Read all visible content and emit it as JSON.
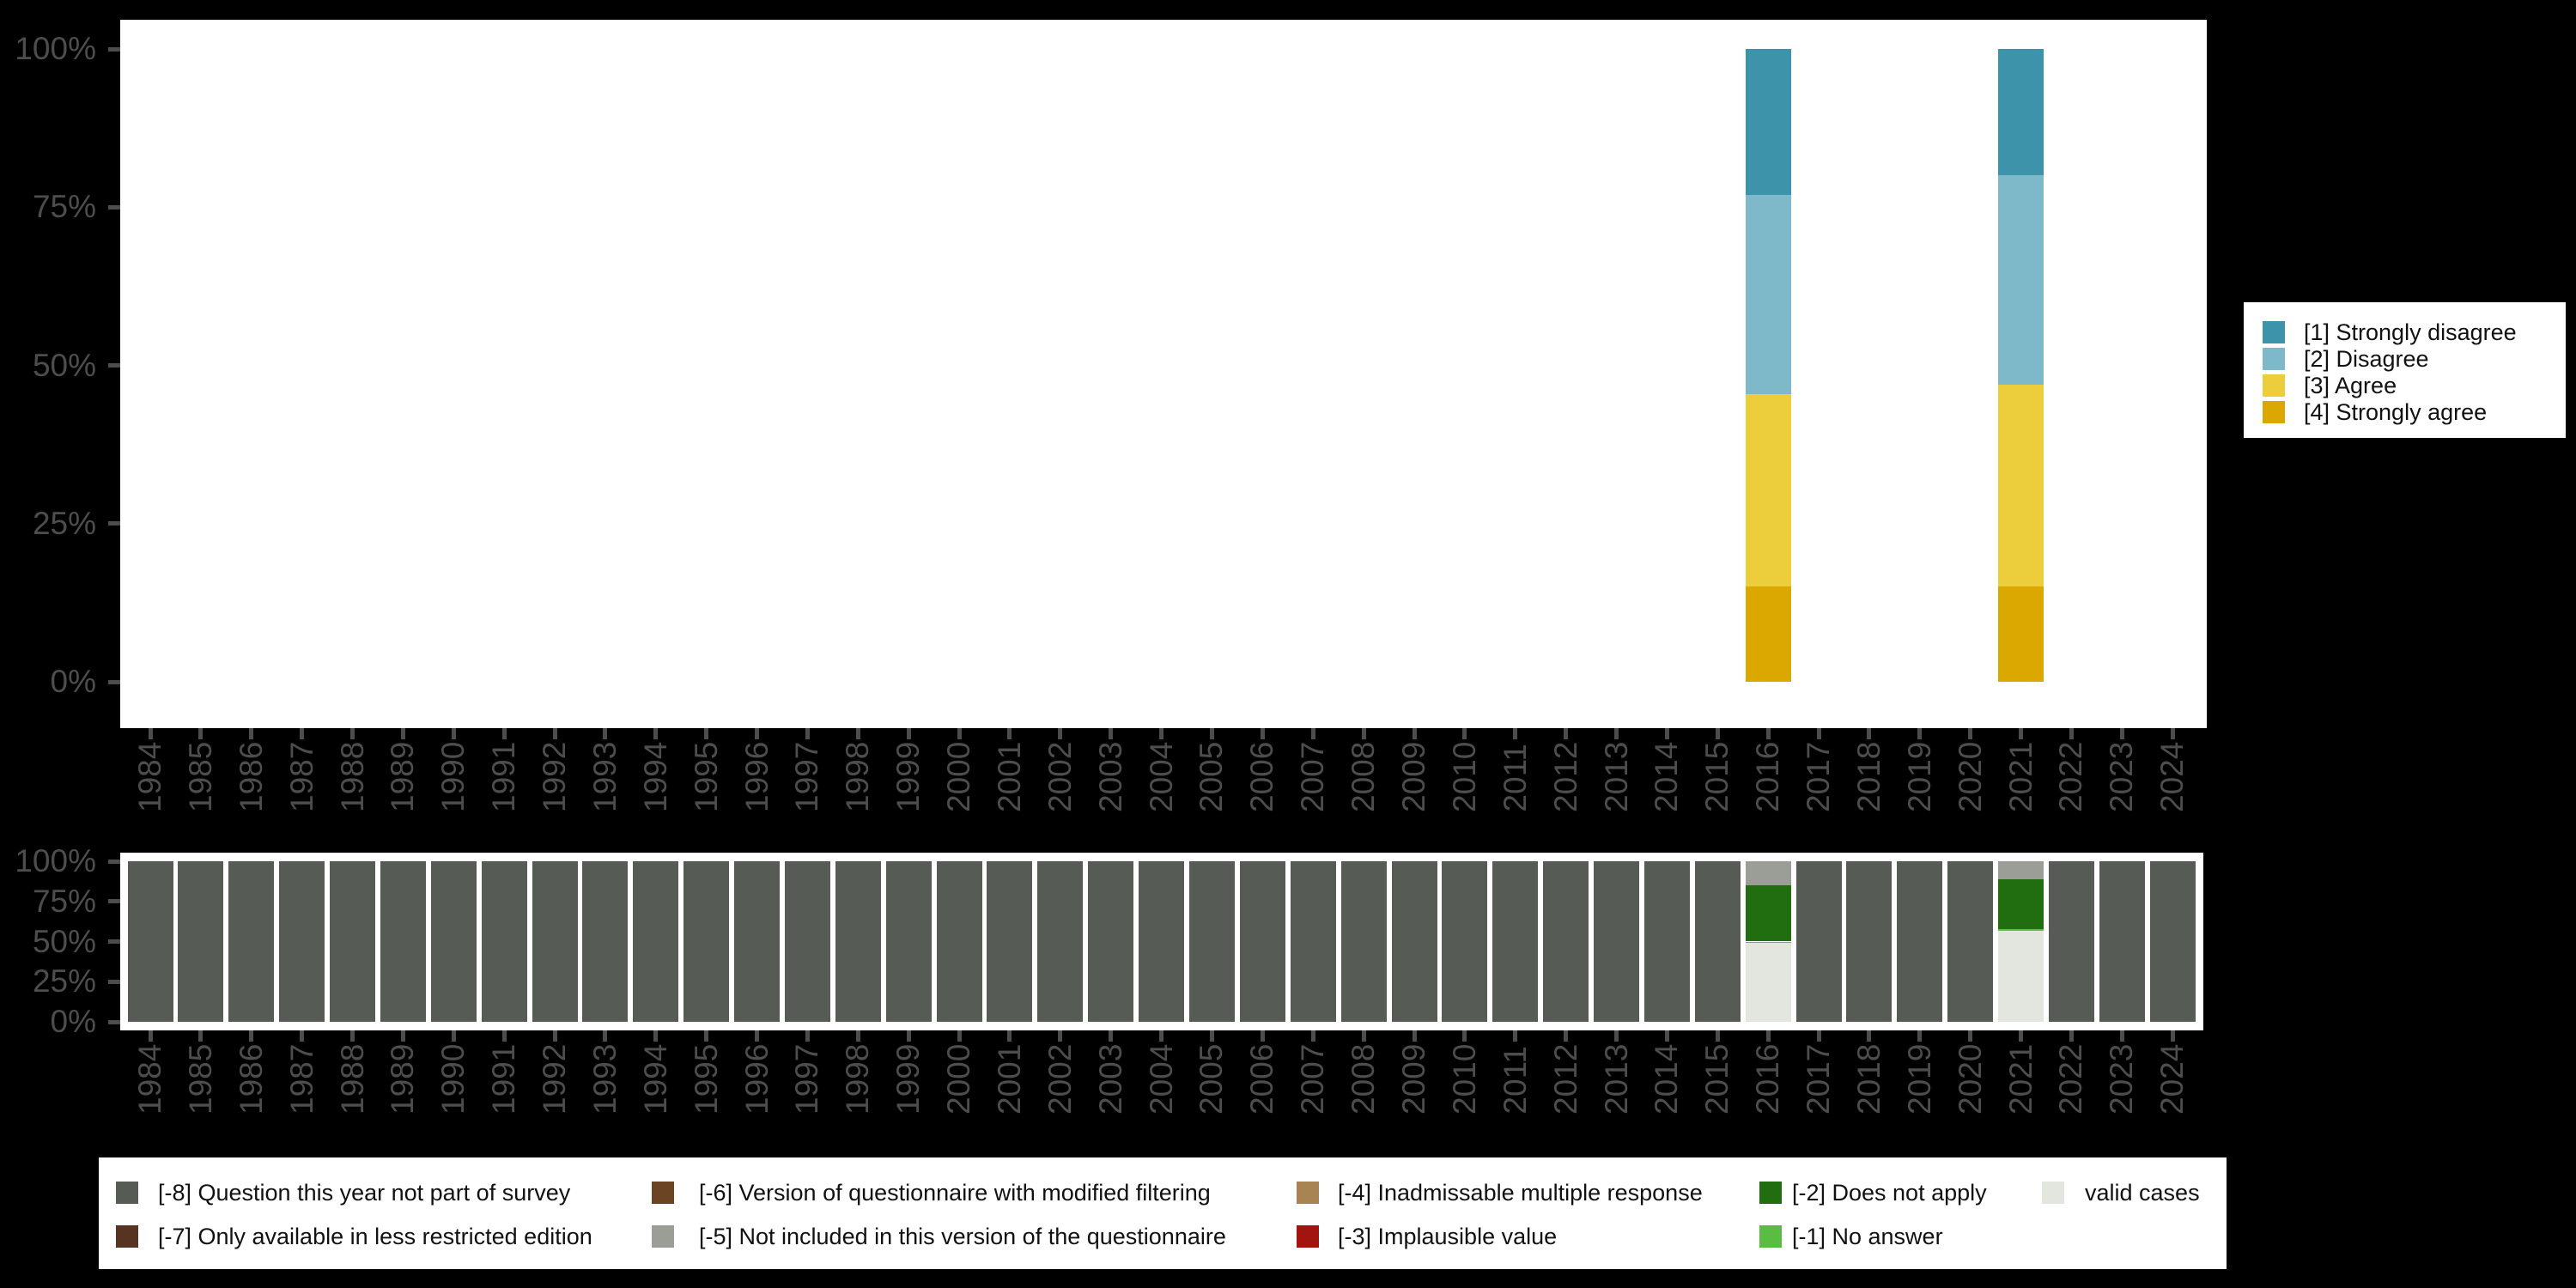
{
  "page": {
    "background": "#000000",
    "panel_background": "#FFFFFF",
    "axis_text_color": "#4d4d4d"
  },
  "chart_data": [
    {
      "type": "bar",
      "stacked": true,
      "orientation": "vertical",
      "title": "",
      "xlabel": "",
      "ylabel": "",
      "x": [
        1984,
        1985,
        1986,
        1987,
        1988,
        1989,
        1990,
        1991,
        1992,
        1993,
        1994,
        1995,
        1996,
        1997,
        1998,
        1999,
        2000,
        2001,
        2002,
        2003,
        2004,
        2005,
        2006,
        2007,
        2008,
        2009,
        2010,
        2011,
        2012,
        2013,
        2014,
        2015,
        2016,
        2017,
        2018,
        2019,
        2020,
        2021,
        2022,
        2023,
        2024
      ],
      "ylim": [
        0,
        100
      ],
      "yticks": [
        0,
        25,
        50,
        75,
        100
      ],
      "ytick_labels": [
        "0%",
        "25%",
        "50%",
        "75%",
        "100%"
      ],
      "grid": false,
      "legend_position": "right",
      "unit": "percent of valid responses",
      "colors": {
        "1_strongly_disagree": "#3D93A9",
        "2_disagree": "#7EB9CA",
        "3_agree": "#ECCD3B",
        "4_strongly_agree": "#DAA800"
      },
      "legend": [
        {
          "key": "1_strongly_disagree",
          "label": "[1] Strongly disagree"
        },
        {
          "key": "2_disagree",
          "label": "[2] Disagree"
        },
        {
          "key": "3_agree",
          "label": "[3] Agree"
        },
        {
          "key": "4_strongly_agree",
          "label": "[4] Strongly agree"
        }
      ],
      "stacks_by_year": {
        "2016": [
          {
            "key": "1_strongly_disagree",
            "value": 23
          },
          {
            "key": "2_disagree",
            "value": 31.5
          },
          {
            "key": "3_agree",
            "value": 30.5
          },
          {
            "key": "4_strongly_agree",
            "value": 15
          }
        ],
        "2021": [
          {
            "key": "1_strongly_disagree",
            "value": 20
          },
          {
            "key": "2_disagree",
            "value": 33
          },
          {
            "key": "3_agree",
            "value": 32
          },
          {
            "key": "4_strongly_agree",
            "value": 15
          }
        ]
      }
    },
    {
      "type": "bar",
      "stacked": true,
      "orientation": "vertical",
      "title": "",
      "xlabel": "",
      "ylabel": "",
      "x": [
        1984,
        1985,
        1986,
        1987,
        1988,
        1989,
        1990,
        1991,
        1992,
        1993,
        1994,
        1995,
        1996,
        1997,
        1998,
        1999,
        2000,
        2001,
        2002,
        2003,
        2004,
        2005,
        2006,
        2007,
        2008,
        2009,
        2010,
        2011,
        2012,
        2013,
        2014,
        2015,
        2016,
        2017,
        2018,
        2019,
        2020,
        2021,
        2022,
        2023,
        2024
      ],
      "ylim": [
        0,
        100
      ],
      "yticks": [
        0,
        25,
        50,
        75,
        100
      ],
      "ytick_labels": [
        "0%",
        "25%",
        "50%",
        "75%",
        "100%"
      ],
      "grid": false,
      "legend_position": "bottom",
      "unit": "percent of all cases (valid vs. missing codes)",
      "colors": {
        "m8": "#565C55",
        "m7": "#573421",
        "m6": "#6B4423",
        "m5": "#9B9E97",
        "m4": "#A88353",
        "m3": "#A31310",
        "m2": "#216E10",
        "m1": "#5ABC43",
        "valid": "#E2E6DF"
      },
      "legend": [
        {
          "key": "m8",
          "label": "[-8] Question this year not part of survey"
        },
        {
          "key": "m7",
          "label": "[-7] Only available in less restricted edition"
        },
        {
          "key": "m6",
          "label": "[-6] Version of questionnaire with modified filtering"
        },
        {
          "key": "m5",
          "label": "[-5] Not included in this version of the questionnaire"
        },
        {
          "key": "m4",
          "label": "[-4] Inadmissable multiple response"
        },
        {
          "key": "m3",
          "label": "[-3] Implausible value"
        },
        {
          "key": "m2",
          "label": "[-2] Does not apply"
        },
        {
          "key": "m1",
          "label": "[-1] No answer"
        },
        {
          "key": "valid",
          "label": "valid cases"
        }
      ],
      "default_stack": [
        {
          "key": "m8",
          "value": 100
        }
      ],
      "stacks_by_year": {
        "2016": [
          {
            "key": "m5",
            "value": 15
          },
          {
            "key": "m2",
            "value": 35
          },
          {
            "key": "m1",
            "value": 1
          },
          {
            "key": "valid",
            "value": 49
          }
        ],
        "2021": [
          {
            "key": "m5",
            "value": 11
          },
          {
            "key": "m2",
            "value": 31.5
          },
          {
            "key": "m1",
            "value": 1
          },
          {
            "key": "valid",
            "value": 56.5
          }
        ]
      }
    }
  ]
}
